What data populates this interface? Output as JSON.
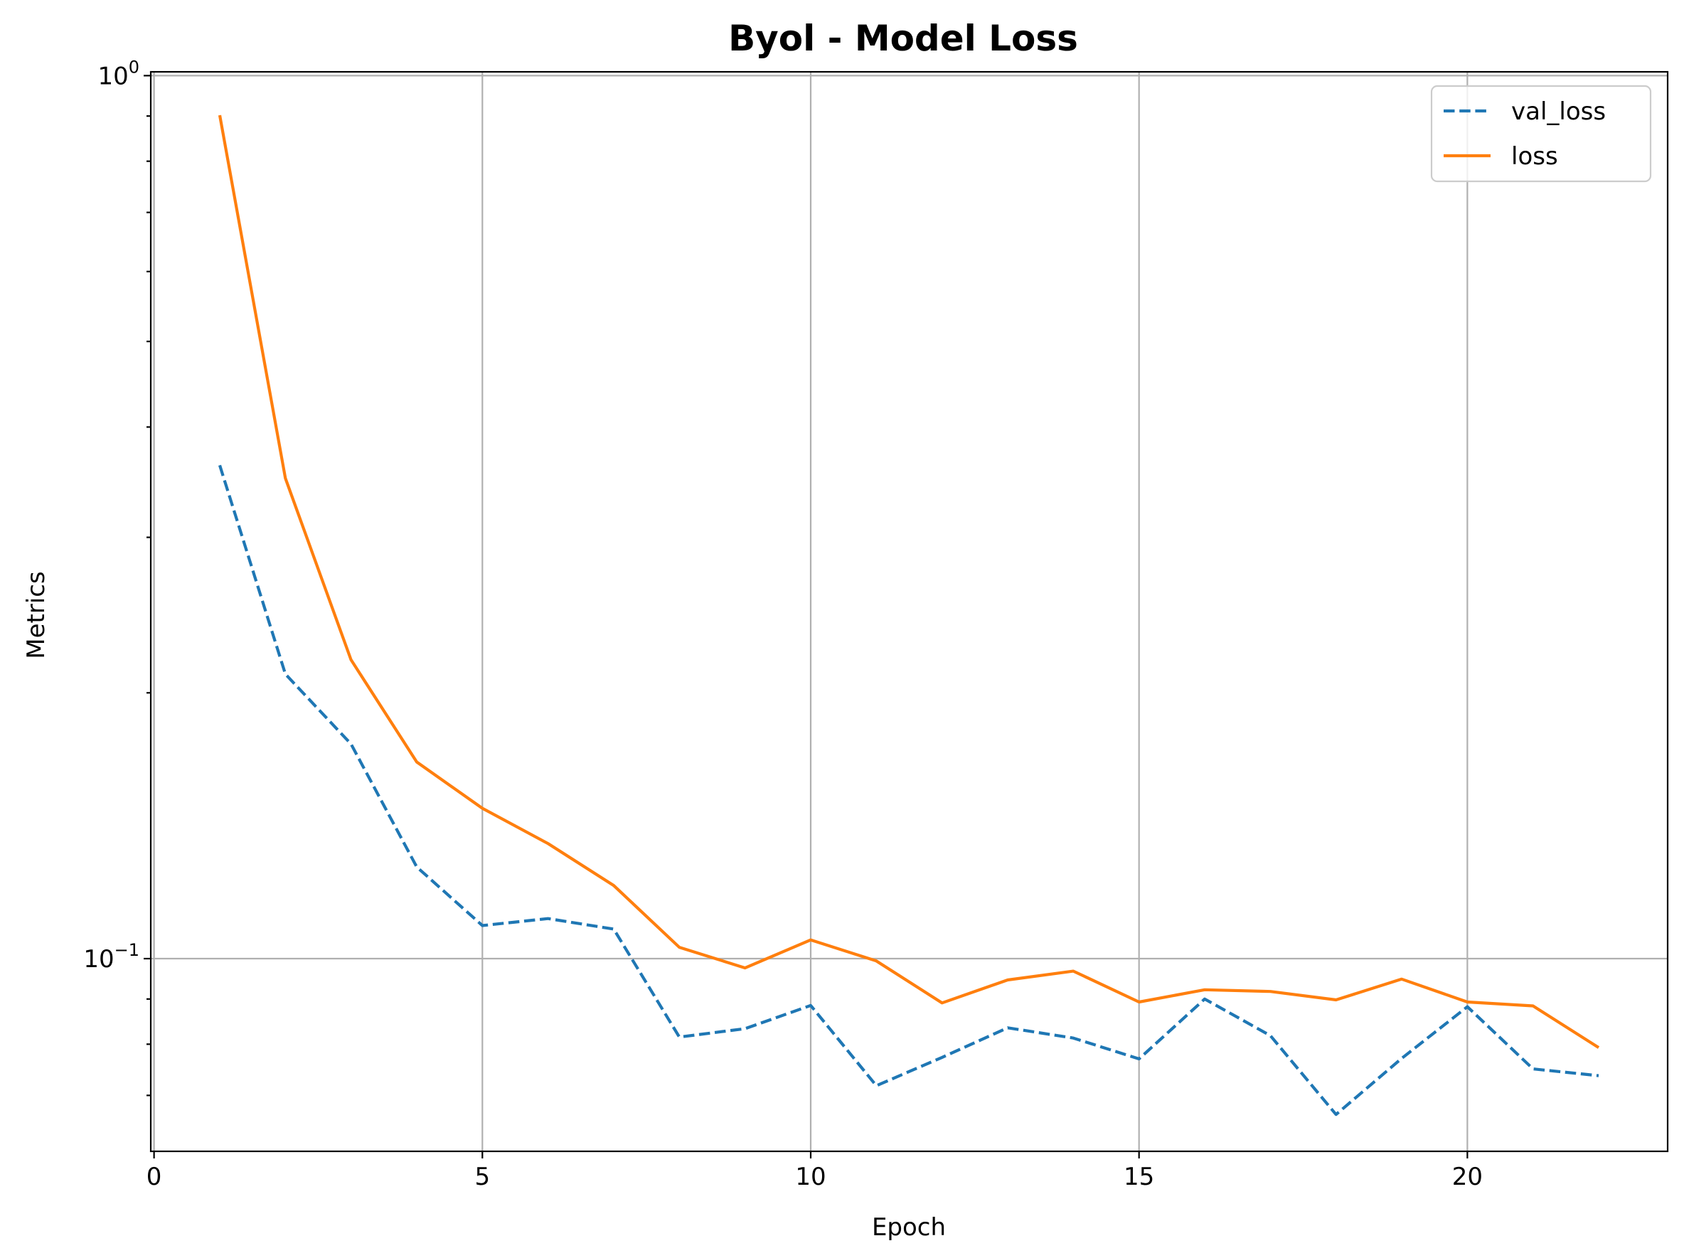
{
  "chart_data": {
    "type": "line",
    "title": "Byol - Model Loss",
    "xlabel": "Epoch",
    "ylabel": "Metrics",
    "yscale": "log",
    "xlim": [
      -0.05,
      23.05
    ],
    "ylim": [
      0.0605,
      1.01
    ],
    "grid": true,
    "legend_position": "top-right",
    "x_ticks": [
      0,
      5,
      10,
      15,
      20
    ],
    "x_tick_labels": [
      "0",
      "5",
      "10",
      "15",
      "20"
    ],
    "y_ticks": [
      1,
      0.1
    ],
    "y_tick_labels": [
      {
        "base": "10",
        "exp": "0"
      },
      {
        "base": "10",
        "exp": "−1"
      }
    ],
    "x": [
      1,
      2,
      3,
      4,
      5,
      6,
      7,
      8,
      9,
      10,
      11,
      12,
      13,
      14,
      15,
      16,
      17,
      18,
      19,
      20,
      21,
      22
    ],
    "series": [
      {
        "name": "val_loss",
        "color": "#1f77b4",
        "dashed": true,
        "values": [
          0.362,
          0.21,
          0.175,
          0.127,
          0.109,
          0.111,
          0.108,
          0.0815,
          0.0833,
          0.0885,
          0.0718,
          0.0773,
          0.0835,
          0.0813,
          0.077,
          0.09,
          0.0818,
          0.0666,
          0.0771,
          0.0882,
          0.075,
          0.0737
        ]
      },
      {
        "name": "loss",
        "color": "#ff7f0e",
        "dashed": false,
        "values": [
          0.902,
          0.35,
          0.218,
          0.167,
          0.148,
          0.135,
          0.121,
          0.103,
          0.0976,
          0.105,
          0.0994,
          0.0891,
          0.0946,
          0.0968,
          0.0893,
          0.0922,
          0.0918,
          0.0898,
          0.0948,
          0.0893,
          0.0884,
          0.0793
        ]
      }
    ]
  }
}
